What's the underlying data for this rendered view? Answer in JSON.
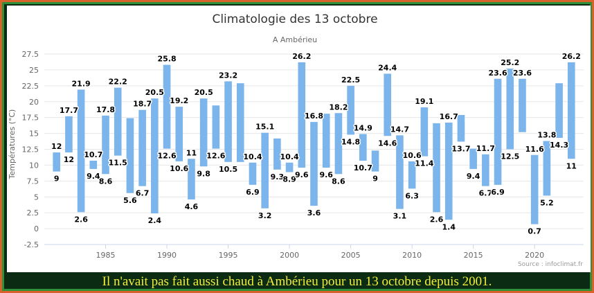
{
  "caption": "Il n'avait pas fait aussi chaud à Ambérieu pour un 13 octobre depuis 2001.",
  "credit": "Source : infoclimat.fr",
  "colors": {
    "bar": "#7cb5ec",
    "grid": "#e6e6e6",
    "frame": "#d9622a",
    "caption": "#f3ee3a"
  },
  "chart_data": {
    "type": "bar",
    "title": "Climatologie des 13 octobre",
    "subtitle": "A Ambérieu",
    "ylabel": "Températures (°C)",
    "ylim": [
      -2.5,
      27.5
    ],
    "yticks": [
      "-2.5",
      "0",
      "2.5",
      "5",
      "7.5",
      "10",
      "12.5",
      "15",
      "17.5",
      "20",
      "22.5",
      "25",
      "27.5"
    ],
    "xlim": [
      1980,
      2024
    ],
    "xticks": [
      "1985",
      "1990",
      "1995",
      "2000",
      "2005",
      "2010",
      "2015",
      "2020"
    ],
    "grid": true,
    "legend": "none",
    "bars": [
      {
        "year": 1981,
        "min": 9,
        "max": 12,
        "min_label": "9",
        "max_label": "12"
      },
      {
        "year": 1982,
        "min": 12,
        "max": 17.7,
        "min_label": "12",
        "max_label": "17.7"
      },
      {
        "year": 1983,
        "min": 2.6,
        "max": 21.9,
        "min_label": "2.6",
        "max_label": "21.9"
      },
      {
        "year": 1984,
        "min": 9.4,
        "max": 10.7,
        "min_label": "9.4",
        "max_label": "10.7"
      },
      {
        "year": 1985,
        "min": 8.6,
        "max": 17.8,
        "min_label": "8.6",
        "max_label": "17.8"
      },
      {
        "year": 1986,
        "min": 11.5,
        "max": 22.2,
        "min_label": "11.5",
        "max_label": "22.2"
      },
      {
        "year": 1987,
        "min": 5.6,
        "max": 17.4,
        "min_label": "5.6",
        "max_label": ""
      },
      {
        "year": 1988,
        "min": 6.7,
        "max": 18.7,
        "min_label": "6.7",
        "max_label": "18.7"
      },
      {
        "year": 1989,
        "min": 2.4,
        "max": 20.5,
        "min_label": "2.4",
        "max_label": "20.5"
      },
      {
        "year": 1990,
        "min": 12.6,
        "max": 25.8,
        "min_label": "12.6",
        "max_label": "25.8"
      },
      {
        "year": 1991,
        "min": 10.6,
        "max": 19.2,
        "min_label": "10.6",
        "max_label": "19.2"
      },
      {
        "year": 1992,
        "min": 4.6,
        "max": 11,
        "min_label": "4.6",
        "max_label": "11"
      },
      {
        "year": 1993,
        "min": 9.8,
        "max": 20.5,
        "min_label": "9.8",
        "max_label": "20.5"
      },
      {
        "year": 1994,
        "min": 12.6,
        "max": 19.4,
        "min_label": "12.6",
        "max_label": ""
      },
      {
        "year": 1995,
        "min": 10.5,
        "max": 23.2,
        "min_label": "10.5",
        "max_label": "23.2"
      },
      {
        "year": 1996,
        "min": 10.5,
        "max": 22.9,
        "min_label": "",
        "max_label": ""
      },
      {
        "year": 1997,
        "min": 6.9,
        "max": 10.4,
        "min_label": "6.9",
        "max_label": "10.4"
      },
      {
        "year": 1998,
        "min": 3.2,
        "max": 15.1,
        "min_label": "3.2",
        "max_label": "15.1"
      },
      {
        "year": 1999,
        "min": 9.3,
        "max": 14.2,
        "min_label": "9.3",
        "max_label": ""
      },
      {
        "year": 2000,
        "min": 8.9,
        "max": 10.4,
        "min_label": "8.9",
        "max_label": "10.4"
      },
      {
        "year": 2001,
        "min": 9.6,
        "max": 26.2,
        "min_label": "9.6",
        "max_label": "26.2"
      },
      {
        "year": 2002,
        "min": 3.6,
        "max": 16.8,
        "min_label": "3.6",
        "max_label": "16.8"
      },
      {
        "year": 2003,
        "min": 9.6,
        "max": 18.1,
        "min_label": "9.6",
        "max_label": ""
      },
      {
        "year": 2004,
        "min": 8.6,
        "max": 18.2,
        "min_label": "8.6",
        "max_label": "18.2"
      },
      {
        "year": 2005,
        "min": 14.8,
        "max": 22.5,
        "min_label": "14.8",
        "max_label": "22.5"
      },
      {
        "year": 2006,
        "min": 10.7,
        "max": 14.9,
        "min_label": "10.7",
        "max_label": "14.9"
      },
      {
        "year": 2007,
        "min": 9,
        "max": 12.3,
        "min_label": "9",
        "max_label": ""
      },
      {
        "year": 2008,
        "min": 14.6,
        "max": 24.4,
        "min_label": "14.6",
        "max_label": "24.4"
      },
      {
        "year": 2009,
        "min": 3.1,
        "max": 14.7,
        "min_label": "3.1",
        "max_label": "14.7"
      },
      {
        "year": 2010,
        "min": 6.3,
        "max": 10.6,
        "min_label": "6.3",
        "max_label": "10.6"
      },
      {
        "year": 2011,
        "min": 11.4,
        "max": 19.1,
        "min_label": "11.4",
        "max_label": "19.1"
      },
      {
        "year": 2012,
        "min": 2.6,
        "max": 16.6,
        "min_label": "2.6",
        "max_label": ""
      },
      {
        "year": 2013,
        "min": 1.4,
        "max": 16.7,
        "min_label": "1.4",
        "max_label": "16.7"
      },
      {
        "year": 2014,
        "min": 13.7,
        "max": 17.9,
        "min_label": "13.7",
        "max_label": ""
      },
      {
        "year": 2015,
        "min": 9.4,
        "max": 12.6,
        "min_label": "9.4",
        "max_label": ""
      },
      {
        "year": 2016,
        "min": 6.7,
        "max": 11.7,
        "min_label": "6.7",
        "max_label": "11.7"
      },
      {
        "year": 2017,
        "min": 6.9,
        "max": 23.6,
        "min_label": "6.9",
        "max_label": "23.6"
      },
      {
        "year": 2018,
        "min": 12.5,
        "max": 25.2,
        "min_label": "12.5",
        "max_label": "25.2"
      },
      {
        "year": 2019,
        "min": 15.2,
        "max": 23.6,
        "min_label": "",
        "max_label": "23.6"
      },
      {
        "year": 2020,
        "min": 0.7,
        "max": 11.6,
        "min_label": "0.7",
        "max_label": "11.6"
      },
      {
        "year": 2021,
        "min": 5.2,
        "max": 13.8,
        "min_label": "5.2",
        "max_label": "13.8"
      },
      {
        "year": 2022,
        "min": 14.3,
        "max": 22.9,
        "min_label": "14.3",
        "max_label": ""
      },
      {
        "year": 2023,
        "min": 11,
        "max": 26.2,
        "min_label": "11",
        "max_label": "26.2"
      }
    ]
  }
}
